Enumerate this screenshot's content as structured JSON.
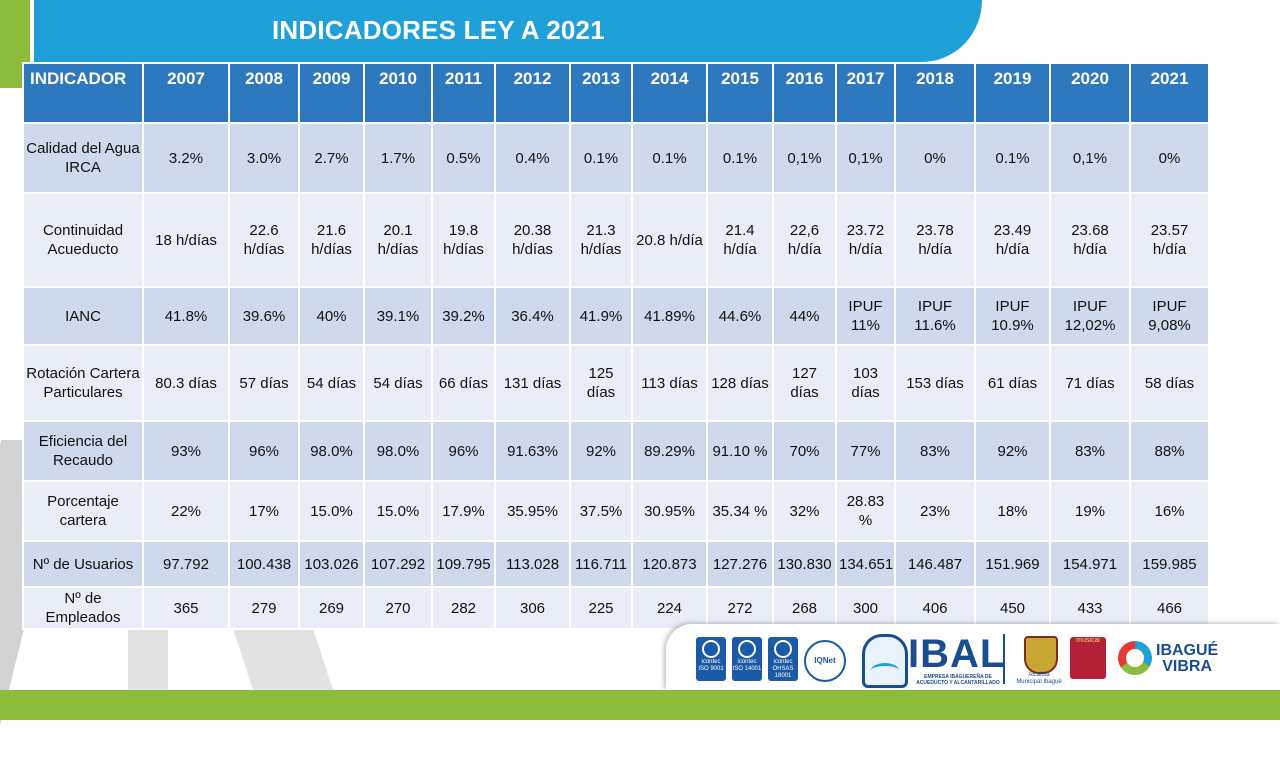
{
  "slide": {
    "title": "INDICADORES LEY A 2021"
  },
  "table": {
    "header_label": "INDICADOR",
    "years": [
      "2007",
      "2008",
      "2009",
      "2010",
      "2011",
      "2012",
      "2013",
      "2014",
      "2015",
      "2016",
      "2017",
      "2018",
      "2019",
      "2020",
      "2021"
    ],
    "rows": [
      {
        "label": "Calidad del Agua IRCA",
        "values": [
          "3.2%",
          "3.0%",
          "2.7%",
          "1.7%",
          "0.5%",
          "0.4%",
          "0.1%",
          "0.1%",
          "0.1%",
          "0,1%",
          "0,1%",
          "0%",
          "0.1%",
          "0,1%",
          "0%"
        ]
      },
      {
        "label": "Continuidad Acueducto",
        "values": [
          "18 h/días",
          "22.6 h/días",
          "21.6 h/días",
          "20.1 h/días",
          "19.8 h/días",
          "20.38 h/días",
          "21.3 h/días",
          "20.8 h/día",
          "21.4 h/día",
          "22,6 h/día",
          "23.72 h/día",
          "23.78 h/día",
          "23.49 h/día",
          "23.68 h/día",
          "23.57 h/día"
        ]
      },
      {
        "label": "IANC",
        "values": [
          "41.8%",
          "39.6%",
          "40%",
          "39.1%",
          "39.2%",
          "36.4%",
          "41.9%",
          "41.89%",
          "44.6%",
          "44%",
          "IPUF 11%",
          "IPUF 11.6%",
          "IPUF 10.9%",
          "IPUF 12,02%",
          "IPUF 9,08%"
        ]
      },
      {
        "label": "Rotación Cartera Particulares",
        "values": [
          "80.3 días",
          "57 días",
          "54 días",
          "54 días",
          "66 días",
          "131 días",
          "125 días",
          "113 días",
          "128 días",
          "127 días",
          "103 días",
          "153 días",
          "61 días",
          "71 días",
          "58 días"
        ]
      },
      {
        "label": "Eficiencia del Recaudo",
        "values": [
          "93%",
          "96%",
          "98.0%",
          "98.0%",
          "96%",
          "91.63%",
          "92%",
          "89.29%",
          "91.10 %",
          "70%",
          "77%",
          "83%",
          "92%",
          "83%",
          "88%"
        ]
      },
      {
        "label": "Porcentaje cartera",
        "values": [
          "22%",
          "17%",
          "15.0%",
          "15.0%",
          "17.9%",
          "35.95%",
          "37.5%",
          "30.95%",
          "35.34 %",
          "32%",
          "28.83 %",
          "23%",
          "18%",
          "19%",
          "16%"
        ]
      },
      {
        "label": "Nº de Usuarios",
        "values": [
          "97.792",
          "100.438",
          "103.026",
          "107.292",
          "109.795",
          "113.028",
          "116.711",
          "120.873",
          "127.276",
          "130.830",
          "134.651",
          "146.487",
          "151.969",
          "154.971",
          "159.985"
        ]
      },
      {
        "label": "Nº de Empleados",
        "values": [
          "365",
          "279",
          "269",
          "270",
          "282",
          "306",
          "225",
          "224",
          "272",
          "268",
          "300",
          "406",
          "450",
          "433",
          "466"
        ]
      }
    ]
  },
  "logos": {
    "cert1_brand": "icontec",
    "cert1_std": "ISO 9001",
    "cert2_brand": "icontec",
    "cert2_std": "ISO 14001",
    "cert3_brand": "icontec",
    "cert3_std": "OHSAS 18001",
    "iqnet": "IQNet",
    "ibal": "IBAL",
    "ibal_subtitle": "EMPRESA IBAGUEREÑA DE ACUEDUCTO Y ALCANTARILLADO",
    "alcaldia": "Alcaldía Municipal Ibagué",
    "musical": "musical",
    "vibra_line1": "IBAGUÉ",
    "vibra_line2": "VIBRA"
  },
  "colors": {
    "header_blue": "#2e78bd",
    "banner_blue": "#1fa0d8",
    "row_dark": "#cfd9ec",
    "row_light": "#e8edf7",
    "accent_green": "#8dbb3b"
  }
}
